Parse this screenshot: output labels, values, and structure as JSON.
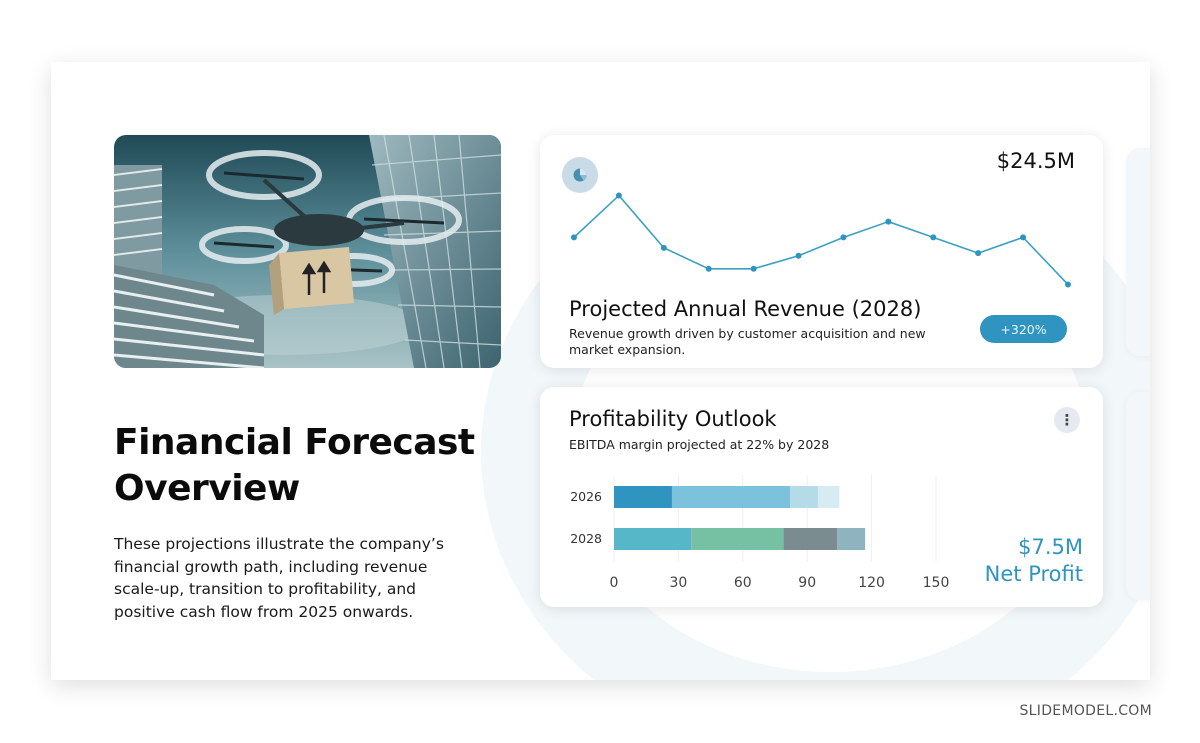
{
  "slide": {
    "title_line1": "Financial Forecast",
    "title_line2": "Overview",
    "body": "These projections illustrate the company’s financial growth path, including revenue scale-up, transition to profitability, and positive cash flow from 2025 onwards."
  },
  "revenue_card": {
    "icon": "pie-chart-icon",
    "value": "$24.5M",
    "title": "Projected Annual Revenue (2028)",
    "subtitle": "Revenue growth driven by customer acquisition and new market expansion.",
    "growth_badge": "+320%"
  },
  "profit_card": {
    "title": "Profitability Outlook",
    "subtitle": "EBITDA margin projected at 22% by 2028",
    "menu_icon": "more-vertical-icon",
    "net_profit_value": "$7.5M",
    "net_profit_label": "Net Profit"
  },
  "watermark": "SLIDEMODEL.COM",
  "colors": {
    "accent": "#2f94bf",
    "line": "#3ba0c4",
    "seg_2026": [
      "#2f94bf",
      "#7cc2dc",
      "#b5dbe8",
      "#d7ebf2"
    ],
    "seg_2028": [
      "#56b7c9",
      "#76c0a3",
      "#7a8c90",
      "#8fb3bf"
    ]
  },
  "chart_data": [
    {
      "type": "line",
      "values": [
        42,
        58,
        38,
        30,
        30,
        35,
        42,
        48,
        42,
        36,
        42,
        24
      ]
    },
    {
      "type": "bar",
      "orientation": "horizontal",
      "stacked": true,
      "categories": [
        "2026",
        "2028"
      ],
      "series_values": [
        [
          27,
          55,
          13,
          10
        ],
        [
          36,
          43,
          25,
          13
        ]
      ],
      "xlim": [
        0,
        150
      ],
      "xticks": [
        "0",
        "30",
        "60",
        "90",
        "120",
        "150"
      ]
    }
  ]
}
